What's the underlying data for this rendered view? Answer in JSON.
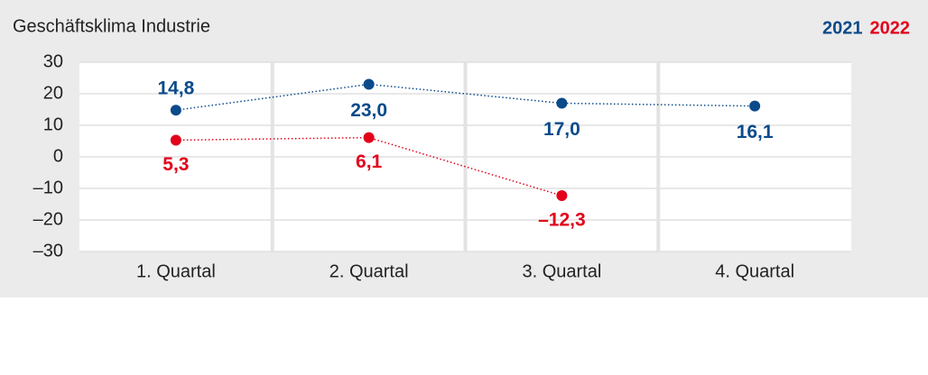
{
  "chart_data": {
    "type": "line",
    "title": "Geschäftsklima Industrie",
    "categories": [
      "1. Quartal",
      "2. Quartal",
      "3. Quartal",
      "4. Quartal"
    ],
    "series": [
      {
        "name": "2021",
        "color": "#0b4a8b",
        "values": [
          14.8,
          23.0,
          17.0,
          16.1
        ],
        "value_labels": [
          "14,8",
          "23,0",
          "17,0",
          "16,1"
        ]
      },
      {
        "name": "2022",
        "color": "#e2001a",
        "values": [
          5.3,
          6.1,
          -12.3,
          null
        ],
        "value_labels": [
          "5,3",
          "6,1",
          "–12,3",
          null
        ]
      }
    ],
    "ylim": [
      -30,
      30
    ],
    "yticks": [
      {
        "value": -30,
        "label": "–30"
      },
      {
        "value": -20,
        "label": "–20"
      },
      {
        "value": -10,
        "label": "–10"
      },
      0,
      10,
      20,
      30
    ],
    "grid": true,
    "legend": "top-right"
  }
}
